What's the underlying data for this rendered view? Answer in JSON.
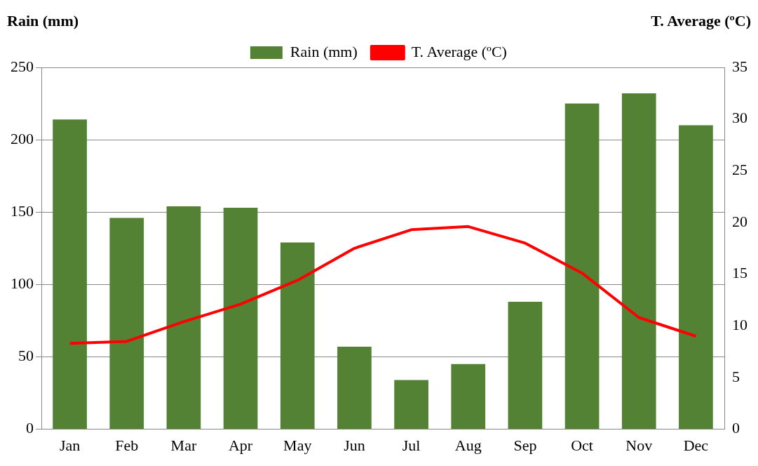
{
  "chart_data": {
    "type": "bar",
    "ylabel": "Rain (mm)",
    "y2label": "T. Average (ºC)",
    "categories": [
      "Jan",
      "Feb",
      "Mar",
      "Apr",
      "May",
      "Jun",
      "Jul",
      "Aug",
      "Sep",
      "Oct",
      "Nov",
      "Dec"
    ],
    "series": [
      {
        "name": "Rain (mm)",
        "color": "#548235",
        "values": [
          214,
          146,
          154,
          153,
          129,
          57,
          34,
          45,
          88,
          225,
          232,
          210
        ]
      },
      {
        "name": "T. Average (ºC)",
        "type": "line",
        "axis": "y2",
        "color": "#ff0000",
        "marker": "none",
        "line_style": "solid",
        "values": [
          8.3,
          8.5,
          10.4,
          12.1,
          14.4,
          17.5,
          19.3,
          19.6,
          18.0,
          15.1,
          10.8,
          9.0
        ]
      }
    ],
    "ylim": [
      0,
      250
    ],
    "yticks": [
      0,
      50,
      100,
      150,
      200,
      250
    ],
    "y2lim": [
      0,
      35
    ],
    "y2ticks": [
      0,
      5,
      10,
      15,
      20,
      25,
      30,
      35
    ],
    "grid": "y",
    "legend": "top"
  }
}
